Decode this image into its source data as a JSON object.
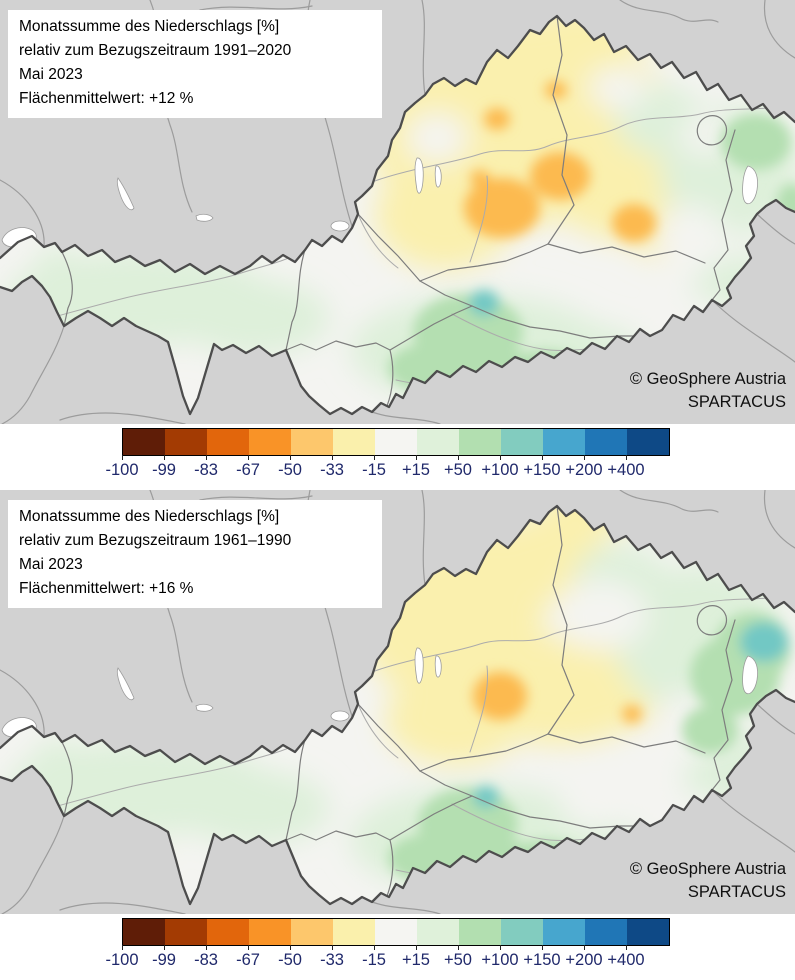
{
  "panels": [
    {
      "title_lines": [
        "Monatssumme des Niederschlags [%]",
        "relativ zum Bezugszeitraum 1991–2020",
        "Mai 2023",
        "Flächenmittelwert: +12 %"
      ],
      "attribution_line1": "© GeoSphere Austria",
      "attribution_line2": "SPARTACUS"
    },
    {
      "title_lines": [
        "Monatssumme des Niederschlags [%]",
        "relativ zum Bezugszeitraum 1961–1990",
        "Mai 2023",
        "Flächenmittelwert: +16 %"
      ],
      "attribution_line1": "© GeoSphere Austria",
      "attribution_line2": "SPARTACUS"
    }
  ],
  "colorbar": {
    "labels": [
      "-100",
      "-99",
      "-83",
      "-67",
      "-50",
      "-33",
      "-15",
      "+15",
      "+50",
      "+100",
      "+150",
      "+200",
      "+400"
    ],
    "colors": [
      "#5f1d07",
      "#a33b03",
      "#e2660c",
      "#f99327",
      "#fdc76c",
      "#faf0ac",
      "#f5f5f2",
      "#dff1da",
      "#b2dfb0",
      "#82ccbf",
      "#47a6ce",
      "#2076b6",
      "#0e4986"
    ],
    "unit": "%"
  },
  "map_colors": {
    "background_outside": "#d2d2d2",
    "austria_neutral": "#f4f4f1",
    "anomaly_yellow": "#faf0ae",
    "anomaly_orange": "#fcba50",
    "anomaly_light_green": "#def0da",
    "anomaly_mid_green": "#b4dfb1",
    "anomaly_teal": "#72c8c4",
    "national_border": "#4d4d4d",
    "state_border": "#7d7d7d",
    "label_navy": "#20296b"
  }
}
